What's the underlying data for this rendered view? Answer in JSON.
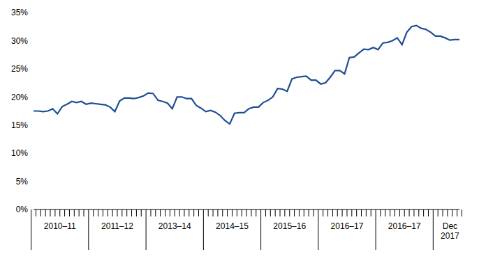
{
  "chart_data": {
    "type": "line",
    "categories": [
      null,
      null,
      null,
      null,
      null,
      null,
      "2010–11",
      null,
      null,
      null,
      null,
      null,
      null,
      null,
      null,
      null,
      null,
      null,
      "2011–12",
      null,
      null,
      null,
      null,
      null,
      null,
      null,
      null,
      null,
      null,
      null,
      "2013–14",
      null,
      null,
      null,
      null,
      null,
      null,
      null,
      null,
      null,
      null,
      null,
      "2014–15",
      null,
      null,
      null,
      null,
      null,
      null,
      null,
      null,
      null,
      null,
      null,
      "2015–16",
      null,
      null,
      null,
      null,
      null,
      null,
      null,
      null,
      null,
      null,
      null,
      "2016–17",
      null,
      null,
      null,
      null,
      null,
      null,
      null,
      null,
      null,
      null,
      null,
      "2016–17",
      null,
      null,
      null,
      null,
      null,
      null,
      null,
      null,
      null,
      null,
      "Dec 2017"
    ],
    "values": [
      17.5,
      17.5,
      17.4,
      17.5,
      17.9,
      17.0,
      18.3,
      18.7,
      19.2,
      19.0,
      19.2,
      18.7,
      18.9,
      18.8,
      18.7,
      18.6,
      18.2,
      17.4,
      19.3,
      19.8,
      19.8,
      19.7,
      19.9,
      20.2,
      20.7,
      20.6,
      19.4,
      19.2,
      18.9,
      17.9,
      20.0,
      20.0,
      19.7,
      19.7,
      18.5,
      18.0,
      17.4,
      17.6,
      17.3,
      16.7,
      15.8,
      15.2,
      17.1,
      17.2,
      17.2,
      17.9,
      18.2,
      18.2,
      19.0,
      19.4,
      20.0,
      21.5,
      21.4,
      21.0,
      23.2,
      23.5,
      23.6,
      23.7,
      23.0,
      23.0,
      22.3,
      22.5,
      23.5,
      24.7,
      24.7,
      24.1,
      27.0,
      27.1,
      27.8,
      28.5,
      28.4,
      28.8,
      28.4,
      29.6,
      29.7,
      30.0,
      30.5,
      29.3,
      31.5,
      32.5,
      32.7,
      32.2,
      32.0,
      31.5,
      30.8,
      30.8,
      30.5,
      30.1,
      30.2,
      30.2
    ],
    "color": "#1f4e96",
    "ylim": [
      0,
      35
    ],
    "yticks": [
      {
        "value": 0,
        "label": "0%"
      },
      {
        "value": 5,
        "label": "5%"
      },
      {
        "value": 10,
        "label": "10%"
      },
      {
        "value": 15,
        "label": "15%"
      },
      {
        "value": 20,
        "label": "20%"
      },
      {
        "value": 25,
        "label": "25%"
      },
      {
        "value": 30,
        "label": "30%"
      },
      {
        "value": 35,
        "label": "35%"
      }
    ],
    "grid": false
  }
}
